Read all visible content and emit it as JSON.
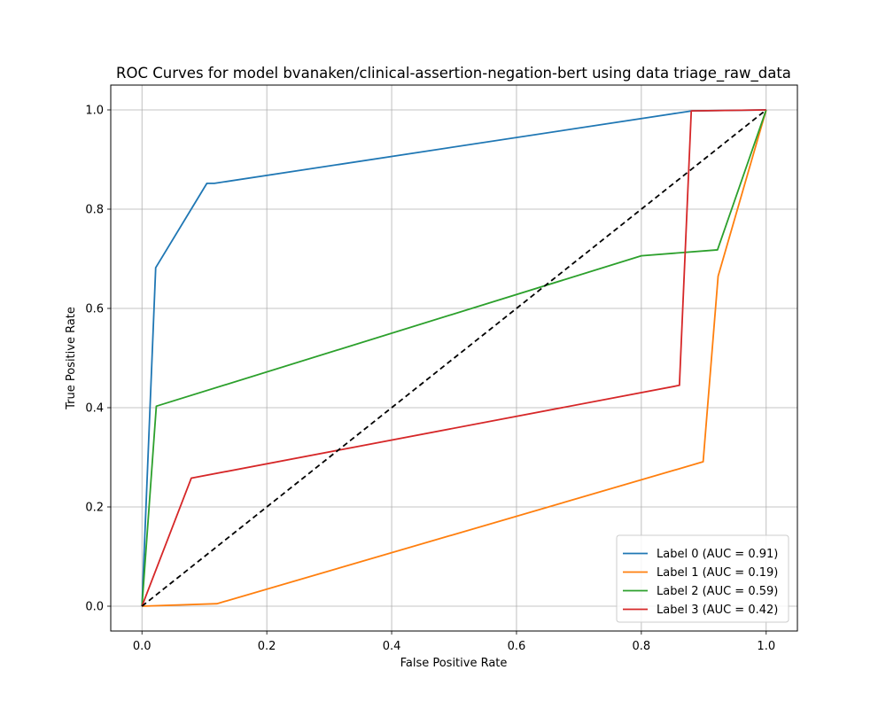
{
  "chart_data": {
    "type": "line",
    "title": "ROC Curves for model bvanaken/clinical-assertion-negation-bert using data triage_raw_data",
    "xlabel": "False Positive Rate",
    "ylabel": "True Positive Rate",
    "xlim": [
      -0.05,
      1.05
    ],
    "ylim": [
      -0.05,
      1.05
    ],
    "xticks": [
      "0.0",
      "0.2",
      "0.4",
      "0.6",
      "0.8",
      "1.0"
    ],
    "yticks": [
      "0.0",
      "0.2",
      "0.4",
      "0.6",
      "0.8",
      "1.0"
    ],
    "grid": true,
    "legend_position": "lower-right",
    "series": [
      {
        "name": "Label 0 (AUC = 0.91)",
        "color": "#1f77b4",
        "x": [
          0.0,
          0.022,
          0.104,
          0.116,
          0.881,
          1.0
        ],
        "y": [
          0.0,
          0.682,
          0.852,
          0.852,
          0.998,
          1.0
        ]
      },
      {
        "name": "Label 1 (AUC = 0.19)",
        "color": "#ff7f0e",
        "x": [
          0.0,
          0.12,
          0.899,
          0.923,
          1.0
        ],
        "y": [
          0.0,
          0.005,
          0.291,
          0.665,
          1.0
        ]
      },
      {
        "name": "Label 2 (AUC = 0.59)",
        "color": "#2ca02c",
        "x": [
          0.0,
          0.023,
          0.8,
          0.922,
          1.0
        ],
        "y": [
          0.0,
          0.403,
          0.706,
          0.718,
          1.0
        ]
      },
      {
        "name": "Label 3 (AUC = 0.42)",
        "color": "#d62728",
        "x": [
          0.0,
          0.079,
          0.861,
          0.88,
          1.0
        ],
        "y": [
          0.0,
          0.258,
          0.445,
          0.998,
          1.0
        ]
      }
    ],
    "reference_line": {
      "x": [
        0.0,
        1.0
      ],
      "y": [
        0.0,
        1.0
      ],
      "color": "#000000",
      "style": "dashed"
    }
  }
}
